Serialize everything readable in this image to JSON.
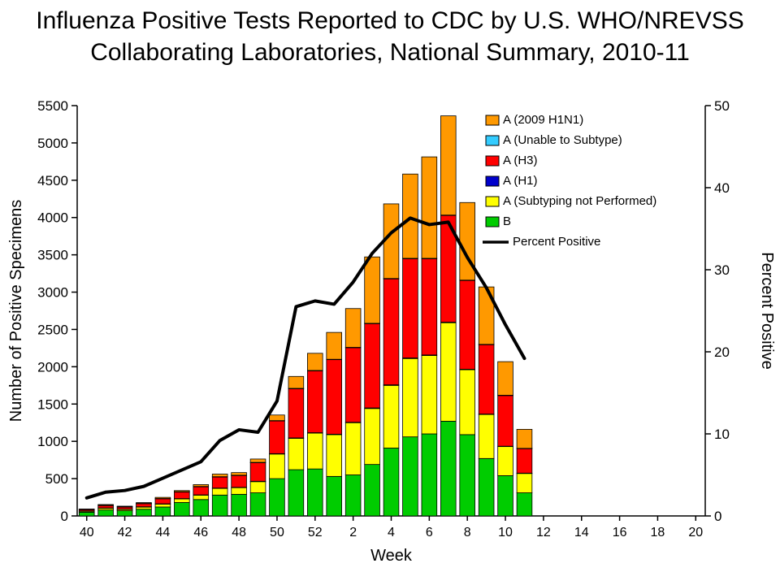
{
  "title": {
    "line1": "Influenza Positive Tests Reported to CDC by U.S. WHO/NREVSS",
    "line2": "Collaborating Laboratories, National Summary, 2010-11"
  },
  "chart_data": {
    "type": "bar",
    "stacked": true,
    "title": "Influenza Positive Tests Reported to CDC by U.S. WHO/NREVSS Collaborating Laboratories, National Summary, 2010-11",
    "xlabel": "Week",
    "ylabel_left": "Number of Positive Specimens",
    "ylabel_right": "Percent Positive",
    "ylim_left": [
      0,
      5500
    ],
    "ytick_step_left": 500,
    "ylim_right": [
      0,
      50
    ],
    "ytick_step_right": 10,
    "grid": false,
    "legend_position": "upper-right-inside",
    "categories": [
      "40",
      "41",
      "42",
      "43",
      "44",
      "45",
      "46",
      "47",
      "48",
      "49",
      "50",
      "51",
      "52",
      "1",
      "2",
      "3",
      "4",
      "5",
      "6",
      "7",
      "8",
      "9",
      "10",
      "11",
      "12",
      "13",
      "14",
      "15",
      "16",
      "17",
      "18",
      "19",
      "20"
    ],
    "series": [
      {
        "name": "B",
        "color": "#00CC00",
        "values": [
          50,
          80,
          70,
          90,
          120,
          180,
          220,
          280,
          290,
          310,
          500,
          620,
          630,
          530,
          550,
          690,
          910,
          1060,
          1100,
          1270,
          1090,
          770,
          540,
          310
        ]
      },
      {
        "name": "A (Subtyping not Performed)",
        "color": "#FFFF00",
        "values": [
          15,
          25,
          20,
          30,
          40,
          50,
          60,
          90,
          90,
          150,
          330,
          420,
          480,
          560,
          700,
          750,
          840,
          1050,
          1050,
          1320,
          870,
          590,
          390,
          260
        ]
      },
      {
        "name": "A (H1)",
        "color": "#0000CC",
        "values": [
          2,
          2,
          2,
          3,
          3,
          3,
          3,
          4,
          4,
          5,
          5,
          6,
          6,
          6,
          6,
          8,
          8,
          8,
          8,
          8,
          7,
          6,
          5,
          4
        ]
      },
      {
        "name": "A (H3)",
        "color": "#FF0000",
        "values": [
          20,
          35,
          30,
          45,
          70,
          90,
          110,
          150,
          160,
          250,
          440,
          660,
          830,
          1000,
          1000,
          1130,
          1420,
          1330,
          1290,
          1430,
          1190,
          930,
          680,
          330
        ]
      },
      {
        "name": "A (Unable to Subtype)",
        "color": "#33CCFF",
        "values": [
          1,
          1,
          1,
          1,
          1,
          2,
          2,
          2,
          2,
          3,
          3,
          4,
          4,
          4,
          4,
          4,
          5,
          5,
          5,
          5,
          4,
          4,
          3,
          2
        ]
      },
      {
        "name": "A (2009 H1N1)",
        "color": "#FF9900",
        "values": [
          5,
          10,
          8,
          10,
          15,
          15,
          25,
          35,
          35,
          45,
          75,
          160,
          230,
          360,
          520,
          890,
          1000,
          1130,
          1360,
          1330,
          1040,
          770,
          450,
          255
        ]
      }
    ],
    "line_series": {
      "name": "Percent Positive",
      "color": "#000000",
      "axis": "right",
      "values": [
        2.2,
        2.9,
        3.1,
        3.6,
        4.6,
        5.6,
        6.6,
        9.2,
        10.5,
        10.2,
        14.0,
        25.5,
        26.2,
        25.8,
        28.5,
        32.0,
        34.5,
        36.3,
        35.5,
        35.8,
        31.5,
        27.8,
        23.3,
        19.2
      ]
    },
    "legend": [
      {
        "label": "A (2009 H1N1)",
        "color": "#FF9900",
        "type": "box"
      },
      {
        "label": "A (Unable to Subtype)",
        "color": "#33CCFF",
        "type": "box"
      },
      {
        "label": "A (H3)",
        "color": "#FF0000",
        "type": "box"
      },
      {
        "label": "A (H1)",
        "color": "#0000CC",
        "type": "box"
      },
      {
        "label": "A (Subtyping not Performed)",
        "color": "#FFFF00",
        "type": "box"
      },
      {
        "label": "B",
        "color": "#00CC00",
        "type": "box"
      },
      {
        "label": "Percent Positive",
        "color": "#000000",
        "type": "line"
      }
    ]
  }
}
